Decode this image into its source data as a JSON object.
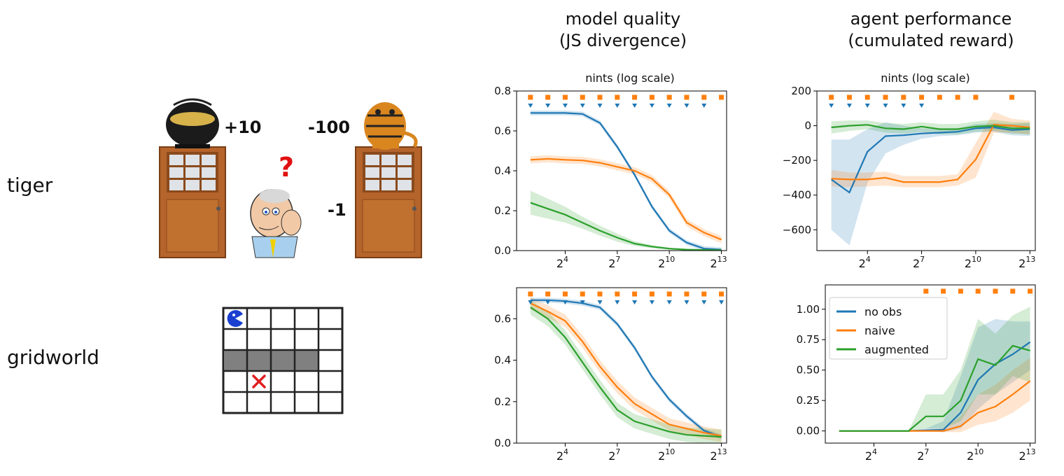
{
  "rows": [
    {
      "label": "tiger"
    },
    {
      "label": "gridworld"
    }
  ],
  "columns": [
    {
      "title_line1": "model quality",
      "title_line2": "(JS divergence)",
      "xlabel": "nints (log scale)"
    },
    {
      "title_line1": "agent performance",
      "title_line2": "(cumulated reward)",
      "xlabel": "nints (log scale)"
    }
  ],
  "tiger_scene": {
    "reward_gold": "+10",
    "reward_tiger": "-100",
    "reward_listen": "-1",
    "question_mark": "?"
  },
  "colors": {
    "no_obs": "#1f77b4",
    "naive": "#ff7f0e",
    "augmented": "#2ca02c",
    "grid_wall": "#808080",
    "goal": "#e02020",
    "agent": "#1a3fd0"
  },
  "legend": {
    "entries": [
      "no obs",
      "naive",
      "augmented"
    ]
  },
  "chart_data": [
    {
      "id": "tiger-js",
      "type": "line",
      "x_scale": "log2",
      "x": [
        4,
        8,
        16,
        32,
        64,
        128,
        256,
        512,
        1024,
        2048,
        4096,
        8192
      ],
      "xticks": [
        16,
        128,
        1024,
        8192
      ],
      "xtick_labels": [
        "2^4",
        "2^7",
        "2^10",
        "2^13"
      ],
      "ylim": [
        0,
        0.8
      ],
      "yticks": [
        0.0,
        0.2,
        0.4,
        0.6,
        0.8
      ],
      "ytick_labels": [
        "0.0",
        "0.2",
        "0.4",
        "0.6",
        "0.8"
      ],
      "series": [
        {
          "name": "no obs",
          "values": [
            0.69,
            0.69,
            0.69,
            0.685,
            0.64,
            0.52,
            0.38,
            0.22,
            0.1,
            0.04,
            0.01,
            0.005
          ],
          "band": 0.012
        },
        {
          "name": "naive",
          "values": [
            0.455,
            0.46,
            0.455,
            0.452,
            0.44,
            0.42,
            0.4,
            0.36,
            0.28,
            0.14,
            0.09,
            0.055
          ],
          "band": 0.018
        },
        {
          "name": "augmented",
          "values": [
            0.24,
            0.21,
            0.18,
            0.14,
            0.1,
            0.065,
            0.035,
            0.02,
            0.01,
            0.005,
            0.003,
            0.002
          ],
          "band_width": [
            0.06,
            0.05,
            0.04,
            0.03,
            0.025,
            0.02,
            0.012,
            0.008,
            0.005,
            0.003,
            0.002,
            0.002
          ]
        }
      ],
      "markers": {
        "naive_squares": [
          4,
          8,
          16,
          32,
          64,
          128,
          256,
          512,
          1024,
          2048,
          4096,
          8192
        ],
        "no_obs_triangles": [
          4,
          8,
          16,
          32,
          64,
          128,
          256,
          512,
          1024,
          2048,
          4096
        ]
      }
    },
    {
      "id": "tiger-reward",
      "type": "line",
      "x_scale": "log2",
      "x": [
        4,
        8,
        16,
        32,
        64,
        128,
        256,
        512,
        1024,
        2048,
        4096,
        8192
      ],
      "xticks": [
        16,
        128,
        1024,
        8192
      ],
      "xtick_labels": [
        "2^4",
        "2^7",
        "2^10",
        "2^13"
      ],
      "ylim": [
        -720,
        200
      ],
      "yticks": [
        -600,
        -400,
        -200,
        0,
        200
      ],
      "ytick_labels": [
        "−600",
        "−400",
        "−200",
        "0",
        "200"
      ],
      "series": [
        {
          "name": "no obs",
          "values": [
            -310,
            -385,
            -150,
            -60,
            -55,
            -45,
            -40,
            -35,
            -15,
            -10,
            -25,
            -20
          ],
          "band_lo": [
            -600,
            -690,
            -330,
            -160,
            -110,
            -75,
            -60,
            -55,
            -40,
            -35,
            -55,
            -60
          ],
          "band_hi": [
            -80,
            -80,
            -20,
            20,
            0,
            -15,
            -20,
            -15,
            10,
            15,
            10,
            15
          ]
        },
        {
          "name": "naive",
          "values": [
            -305,
            -310,
            -310,
            -300,
            -325,
            -325,
            -325,
            -310,
            -195,
            5,
            0,
            -10
          ],
          "band_lo": [
            -350,
            -355,
            -350,
            -345,
            -355,
            -355,
            -355,
            -345,
            -300,
            -40,
            -40,
            -50
          ],
          "band_hi": [
            -255,
            -270,
            -270,
            -265,
            -290,
            -290,
            -290,
            -280,
            -100,
            80,
            40,
            30
          ]
        },
        {
          "name": "augmented",
          "values": [
            -10,
            0,
            5,
            -15,
            -20,
            -5,
            -20,
            -20,
            -5,
            0,
            -15,
            -15
          ],
          "band_lo": [
            -45,
            -30,
            -20,
            -40,
            -45,
            -35,
            -50,
            -50,
            -35,
            -30,
            -45,
            -50
          ],
          "band_hi": [
            25,
            30,
            30,
            15,
            10,
            20,
            10,
            10,
            25,
            35,
            20,
            20
          ]
        }
      ],
      "markers": {
        "naive_squares": [
          4,
          8,
          16,
          32,
          64,
          128,
          256,
          512,
          1024,
          4096
        ],
        "no_obs_triangles": [
          4,
          8,
          16,
          32,
          64,
          128
        ]
      }
    },
    {
      "id": "gridworld-js",
      "type": "line",
      "x_scale": "log2",
      "x": [
        4,
        8,
        16,
        32,
        64,
        128,
        256,
        512,
        1024,
        2048,
        4096,
        8192
      ],
      "xticks": [
        16,
        128,
        1024,
        8192
      ],
      "xtick_labels": [
        "2^4",
        "2^7",
        "2^10",
        "2^13"
      ],
      "ylim": [
        0,
        0.75
      ],
      "yticks": [
        0.0,
        0.2,
        0.4,
        0.6
      ],
      "ytick_labels": [
        "0.0",
        "0.2",
        "0.4",
        "0.6"
      ],
      "series": [
        {
          "name": "no obs",
          "values": [
            0.69,
            0.69,
            0.685,
            0.675,
            0.655,
            0.575,
            0.46,
            0.32,
            0.21,
            0.13,
            0.06,
            0.03
          ],
          "band": 0.012
        },
        {
          "name": "naive",
          "values": [
            0.675,
            0.635,
            0.59,
            0.49,
            0.37,
            0.27,
            0.19,
            0.14,
            0.09,
            0.07,
            0.05,
            0.035
          ],
          "band": 0.03
        },
        {
          "name": "augmented",
          "values": [
            0.655,
            0.6,
            0.51,
            0.39,
            0.27,
            0.16,
            0.105,
            0.08,
            0.055,
            0.04,
            0.035,
            0.03
          ],
          "band": 0.035
        }
      ],
      "markers": {
        "naive_squares": [
          4,
          8,
          16,
          32,
          64,
          128,
          256,
          512,
          1024,
          2048,
          4096,
          8192
        ],
        "no_obs_triangles": [
          4,
          8,
          16,
          32,
          64,
          128,
          256,
          512,
          1024,
          2048,
          4096,
          8192
        ]
      }
    },
    {
      "id": "gridworld-reward",
      "type": "line",
      "x_scale": "log2",
      "x": [
        4,
        8,
        16,
        32,
        64,
        128,
        256,
        512,
        1024,
        2048,
        4096,
        8192
      ],
      "xticks": [
        16,
        128,
        1024,
        8192
      ],
      "xtick_labels": [
        "2^4",
        "2^7",
        "2^10",
        "2^13"
      ],
      "ylim": [
        -0.1,
        1.2
      ],
      "yticks": [
        0.0,
        0.25,
        0.5,
        0.75,
        1.0
      ],
      "ytick_labels": [
        "0.00",
        "0.25",
        "0.50",
        "0.75",
        "1.00"
      ],
      "series": [
        {
          "name": "no obs",
          "values": [
            0,
            0,
            0,
            0,
            0,
            0.005,
            0.01,
            0.15,
            0.42,
            0.55,
            0.63,
            0.73
          ],
          "band_lo": [
            0,
            0,
            0,
            0,
            0,
            0,
            -0.01,
            0.02,
            0.18,
            0.3,
            0.4,
            0.5
          ],
          "band_hi": [
            0,
            0,
            0,
            0,
            0,
            0.02,
            0.08,
            0.45,
            0.85,
            0.92,
            0.9,
            0.9
          ]
        },
        {
          "name": "naive",
          "values": [
            0,
            0,
            0,
            0,
            0,
            0,
            0,
            0.04,
            0.15,
            0.2,
            0.3,
            0.41
          ],
          "band_lo": [
            0,
            0,
            0,
            0,
            0,
            0,
            -0.01,
            -0.01,
            0.05,
            0.08,
            0.15,
            0.25
          ],
          "band_hi": [
            0,
            0,
            0,
            0,
            0,
            0.01,
            0.02,
            0.12,
            0.3,
            0.38,
            0.5,
            0.6
          ]
        },
        {
          "name": "augmented",
          "values": [
            0,
            0,
            0,
            0,
            0,
            0.12,
            0.12,
            0.25,
            0.59,
            0.54,
            0.7,
            0.66
          ],
          "band_lo": [
            0,
            0,
            0,
            0,
            0,
            0.02,
            0.02,
            0.08,
            0.3,
            0.3,
            0.45,
            0.4
          ],
          "band_hi": [
            0,
            0,
            0,
            0,
            0,
            0.3,
            0.3,
            0.5,
            0.92,
            0.8,
            0.95,
            1.02
          ]
        }
      ],
      "markers": {
        "naive_squares": [
          128,
          256,
          512,
          1024,
          2048,
          4096,
          8192
        ],
        "no_obs_triangles": [
          128,
          256
        ]
      },
      "legend_position": "top-left"
    }
  ]
}
